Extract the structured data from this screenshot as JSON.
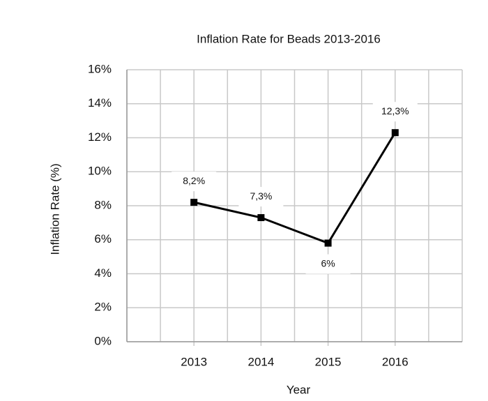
{
  "chart_data": {
    "type": "line",
    "title": "Inflation Rate for Beads 2013-2016",
    "x_label": "Year",
    "y_label": "Inflation Rate (%)",
    "x": [
      2013,
      2014,
      2015,
      2016
    ],
    "xlim": [
      2012,
      2017
    ],
    "xticks": [
      2013,
      2014,
      2015,
      2016
    ],
    "series": [
      {
        "name": "Inflation Rate",
        "color": "#000000",
        "values": [
          8.2,
          7.3,
          5.8,
          12.3
        ],
        "value_labels": [
          "8,2%",
          "7,3%",
          "6%",
          "12,3%"
        ]
      }
    ],
    "ylim": [
      0,
      16
    ],
    "yticks": [
      {
        "value": 0,
        "label": "0%"
      },
      {
        "value": 2,
        "label": "2%"
      },
      {
        "value": 4,
        "label": "4%"
      },
      {
        "value": 6,
        "label": "6%"
      },
      {
        "value": 8,
        "label": "8%"
      },
      {
        "value": 10,
        "label": "10%"
      },
      {
        "value": 12,
        "label": "12%"
      },
      {
        "value": 14,
        "label": "14%"
      },
      {
        "value": 16,
        "label": "16%"
      }
    ],
    "grid": true
  }
}
